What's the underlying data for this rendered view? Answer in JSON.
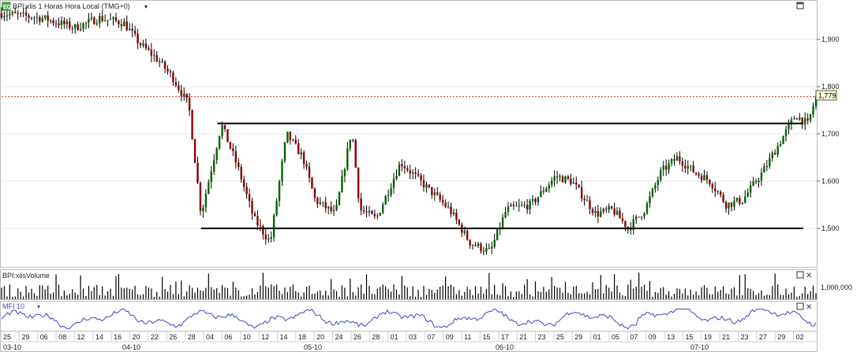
{
  "header": {
    "badge": "EQ",
    "title": "BPI:xlis 1 Horas Hora Local (TMG+0)"
  },
  "last_price_label": "1,779",
  "volume_panel": {
    "title": "BPI:xlisVolume",
    "tick": "1,000,000"
  },
  "mfi_panel": {
    "title": "MFI 10"
  },
  "colors": {
    "up_candle": "#006400",
    "down_candle": "#8b0000",
    "wick": "#000000",
    "volume_bar": "#000000",
    "mfi_line": "#3a46c8",
    "last_price_line": "#c0392b",
    "last_price_box": "#fffbd6",
    "grid": "#e6e6e6",
    "badge": "#4caf50"
  },
  "chart_data": [
    {
      "type": "candlestick",
      "title": "BPI:xlis 1 Horas Hora Local (TMG+0)",
      "y_ticks": [
        "1,500",
        "1,600",
        "1,700",
        "1,800",
        "1,900"
      ],
      "ylim": [
        1420,
        1980
      ],
      "last_price": 1779,
      "x_day_labels": [
        "25",
        "29",
        "06",
        "08",
        "12",
        "14",
        "16",
        "20",
        "22",
        "26",
        "28",
        "04",
        "06",
        "10",
        "12",
        "14",
        "18",
        "20",
        "24",
        "26",
        "28",
        "01",
        "03",
        "07",
        "09",
        "11",
        "15",
        "17",
        "21",
        "23",
        "25",
        "29",
        "01",
        "05",
        "07",
        "09",
        "13",
        "15",
        "19",
        "21",
        "23",
        "27",
        "29",
        "02"
      ],
      "x_month_labels": [
        "03-10",
        "04-10",
        "05-10",
        "06-10",
        "07-10"
      ],
      "price_path": [
        {
          "t": 0.0,
          "v": 1955
        },
        {
          "t": 0.05,
          "v": 1945
        },
        {
          "t": 0.09,
          "v": 1925
        },
        {
          "t": 0.12,
          "v": 1945
        },
        {
          "t": 0.15,
          "v": 1935
        },
        {
          "t": 0.17,
          "v": 1890
        },
        {
          "t": 0.19,
          "v": 1860
        },
        {
          "t": 0.21,
          "v": 1820
        },
        {
          "t": 0.23,
          "v": 1760
        },
        {
          "t": 0.245,
          "v": 1530
        },
        {
          "t": 0.27,
          "v": 1720
        },
        {
          "t": 0.29,
          "v": 1630
        },
        {
          "t": 0.31,
          "v": 1520
        },
        {
          "t": 0.33,
          "v": 1470
        },
        {
          "t": 0.35,
          "v": 1700
        },
        {
          "t": 0.37,
          "v": 1650
        },
        {
          "t": 0.385,
          "v": 1560
        },
        {
          "t": 0.41,
          "v": 1530
        },
        {
          "t": 0.43,
          "v": 1710
        },
        {
          "t": 0.44,
          "v": 1540
        },
        {
          "t": 0.46,
          "v": 1520
        },
        {
          "t": 0.49,
          "v": 1640
        },
        {
          "t": 0.52,
          "v": 1590
        },
        {
          "t": 0.55,
          "v": 1540
        },
        {
          "t": 0.575,
          "v": 1470
        },
        {
          "t": 0.6,
          "v": 1450
        },
        {
          "t": 0.62,
          "v": 1540
        },
        {
          "t": 0.65,
          "v": 1550
        },
        {
          "t": 0.68,
          "v": 1610
        },
        {
          "t": 0.7,
          "v": 1600
        },
        {
          "t": 0.73,
          "v": 1530
        },
        {
          "t": 0.75,
          "v": 1540
        },
        {
          "t": 0.77,
          "v": 1500
        },
        {
          "t": 0.79,
          "v": 1540
        },
        {
          "t": 0.81,
          "v": 1620
        },
        {
          "t": 0.83,
          "v": 1650
        },
        {
          "t": 0.85,
          "v": 1620
        },
        {
          "t": 0.87,
          "v": 1600
        },
        {
          "t": 0.89,
          "v": 1550
        },
        {
          "t": 0.91,
          "v": 1560
        },
        {
          "t": 0.935,
          "v": 1620
        },
        {
          "t": 0.955,
          "v": 1680
        },
        {
          "t": 0.975,
          "v": 1740
        },
        {
          "t": 0.99,
          "v": 1720
        },
        {
          "t": 1.0,
          "v": 1779
        }
      ],
      "horizontal_lines": [
        {
          "from": 0.265,
          "to": 1.0,
          "value": 1722
        },
        {
          "from": 0.245,
          "to": 1.0,
          "value": 1500
        }
      ]
    },
    {
      "type": "bar",
      "title": "BPI:xlisVolume",
      "y_ticks": [
        "1,000,000"
      ],
      "pattern": "sparse tall bars around early May and mid-June, moderate elsewhere"
    },
    {
      "type": "line",
      "title": "MFI 10",
      "pattern": "oscillating between roughly 30 and 80, higher near the end"
    }
  ]
}
